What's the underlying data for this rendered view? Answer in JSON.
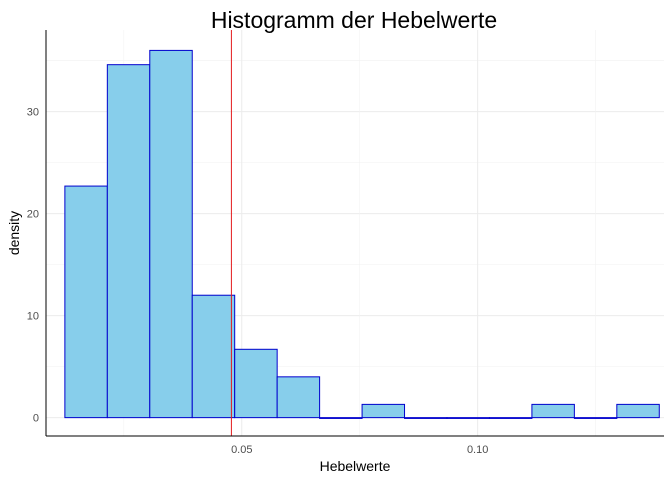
{
  "chart_data": {
    "type": "histogram",
    "title": "Histogramm der Hebelwerte",
    "xlabel": "Hebelwerte",
    "ylabel": "density",
    "xlim": [
      0.0085,
      0.1395
    ],
    "ylim": [
      -1.8,
      38.0
    ],
    "x_ticks": [
      0.05,
      0.1
    ],
    "x_tick_labels": [
      "0.05",
      "0.10"
    ],
    "y_ticks": [
      0,
      10,
      20,
      30
    ],
    "y_tick_labels": [
      "0",
      "10",
      "20",
      "30"
    ],
    "bins": [
      {
        "x0": 0.0125,
        "x1": 0.0215,
        "density": 22.7
      },
      {
        "x0": 0.0215,
        "x1": 0.0305,
        "density": 34.6
      },
      {
        "x0": 0.0305,
        "x1": 0.0395,
        "density": 36.0
      },
      {
        "x0": 0.0395,
        "x1": 0.0485,
        "density": 12.0
      },
      {
        "x0": 0.0485,
        "x1": 0.0575,
        "density": 6.7
      },
      {
        "x0": 0.0575,
        "x1": 0.0665,
        "density": 4.0
      },
      {
        "x0": 0.0665,
        "x1": 0.0755,
        "density": 0
      },
      {
        "x0": 0.0755,
        "x1": 0.0845,
        "density": 1.3
      },
      {
        "x0": 0.0845,
        "x1": 0.0935,
        "density": 0
      },
      {
        "x0": 0.0935,
        "x1": 0.1025,
        "density": 0
      },
      {
        "x0": 0.1025,
        "x1": 0.1115,
        "density": 0
      },
      {
        "x0": 0.1115,
        "x1": 0.1205,
        "density": 1.3
      },
      {
        "x0": 0.1205,
        "x1": 0.1295,
        "density": 0
      },
      {
        "x0": 0.1295,
        "x1": 0.1385,
        "density": 1.3
      }
    ],
    "reference_line": {
      "x": 0.0478,
      "color": "#e41a1c"
    },
    "bar_fill": "#87ceeb",
    "bar_stroke": "#0000cd",
    "grid": true,
    "legend": "none"
  }
}
